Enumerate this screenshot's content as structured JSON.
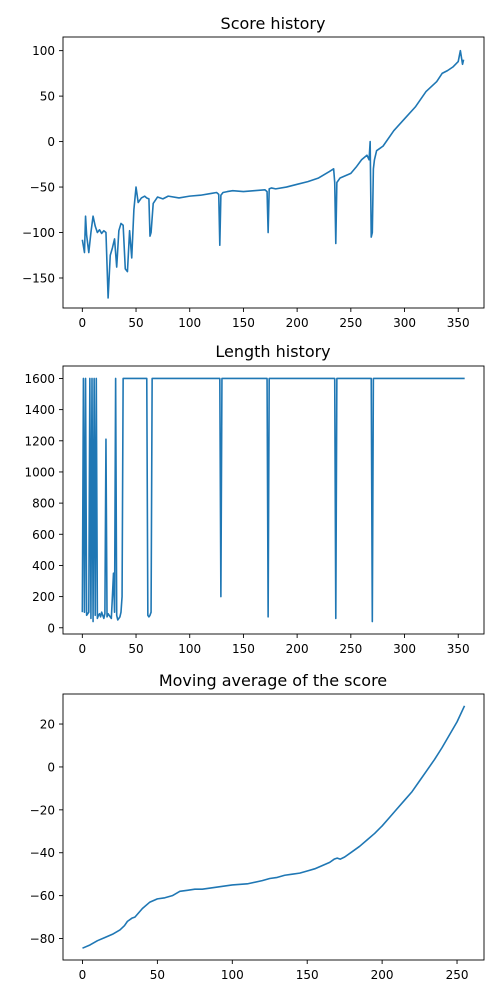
{
  "figure": {
    "line_color": "#1f77b4"
  },
  "chart_data": [
    {
      "type": "line",
      "title": "Score history",
      "xlabel": "",
      "ylabel": "",
      "xlim": [
        -18,
        374
      ],
      "ylim": [
        -183,
        115
      ],
      "xticks": [
        0,
        50,
        100,
        150,
        200,
        250,
        300,
        350
      ],
      "yticks": [
        -150,
        -100,
        -50,
        0,
        50,
        100
      ],
      "grid": false,
      "series": [
        {
          "x": [
            0,
            2,
            3,
            4,
            6,
            8,
            10,
            12,
            14,
            16,
            18,
            20,
            22,
            24,
            26,
            28,
            30,
            32,
            34,
            36,
            38,
            40,
            42,
            44,
            46,
            48,
            50,
            52,
            55,
            58,
            60,
            62,
            63,
            64,
            66,
            70,
            75,
            80,
            90,
            100,
            110,
            120,
            125,
            127,
            128,
            129,
            131,
            135,
            140,
            150,
            160,
            170,
            172,
            173,
            174,
            176,
            180,
            190,
            200,
            210,
            220,
            230,
            234,
            235,
            236,
            237,
            240,
            250,
            255,
            260,
            265,
            267,
            268,
            269,
            270,
            271,
            272,
            274,
            280,
            290,
            300,
            310,
            320,
            330,
            335,
            340,
            345,
            350,
            352,
            354,
            355
          ],
          "y": [
            -108,
            -122,
            -82,
            -103,
            -122,
            -100,
            -82,
            -93,
            -100,
            -97,
            -101,
            -98,
            -100,
            -172,
            -125,
            -117,
            -107,
            -138,
            -98,
            -90,
            -92,
            -140,
            -143,
            -98,
            -128,
            -75,
            -50,
            -67,
            -62,
            -60,
            -62,
            -63,
            -104,
            -100,
            -68,
            -61,
            -63,
            -60,
            -62,
            -60,
            -59,
            -57,
            -56,
            -58,
            -114,
            -59,
            -56,
            -55,
            -54,
            -55,
            -54,
            -53,
            -55,
            -100,
            -52,
            -51,
            -52,
            -50,
            -47,
            -44,
            -40,
            -33,
            -30,
            -45,
            -112,
            -45,
            -40,
            -35,
            -28,
            -20,
            -15,
            -20,
            0,
            -105,
            -100,
            -30,
            -20,
            -10,
            -5,
            12,
            25,
            38,
            55,
            66,
            75,
            78,
            82,
            88,
            100,
            85,
            90
          ]
        }
      ]
    },
    {
      "type": "line",
      "title": "Length history",
      "xlabel": "",
      "ylabel": "",
      "xlim": [
        -18,
        374
      ],
      "ylim": [
        -40,
        1680
      ],
      "xticks": [
        0,
        50,
        100,
        150,
        200,
        250,
        300,
        350
      ],
      "yticks": [
        0,
        200,
        400,
        600,
        800,
        1000,
        1200,
        1400,
        1600
      ],
      "grid": false,
      "series": [
        {
          "x": [
            0,
            1,
            2,
            3,
            4,
            5,
            6,
            7,
            8,
            9,
            10,
            11,
            12,
            13,
            14,
            15,
            16,
            17,
            18,
            19,
            20,
            21,
            22,
            23,
            24,
            25,
            26,
            27,
            28,
            29,
            30,
            31,
            32,
            33,
            34,
            35,
            36,
            37,
            38,
            39,
            40,
            41,
            42,
            43,
            44,
            45,
            46,
            50,
            55,
            58,
            59,
            60,
            61,
            62,
            63,
            64,
            65,
            66,
            67,
            70,
            80,
            100,
            120,
            127,
            128,
            129,
            130,
            131,
            140,
            160,
            170,
            171,
            172,
            173,
            174,
            180,
            200,
            220,
            230,
            234,
            235,
            236,
            237,
            238,
            240,
            260,
            268,
            269,
            270,
            271,
            272,
            273,
            280,
            300,
            320,
            340,
            356
          ],
          "y": [
            100,
            1600,
            100,
            1600,
            80,
            90,
            100,
            1600,
            60,
            1600,
            40,
            1600,
            80,
            1600,
            60,
            80,
            90,
            70,
            100,
            80,
            60,
            90,
            1210,
            70,
            90,
            80,
            70,
            60,
            200,
            350,
            100,
            1600,
            80,
            50,
            60,
            70,
            100,
            200,
            1600,
            1600,
            1600,
            1600,
            1600,
            1600,
            1600,
            1600,
            1600,
            1600,
            1600,
            1600,
            1600,
            1600,
            80,
            70,
            80,
            100,
            1600,
            1600,
            1600,
            1600,
            1600,
            1600,
            1600,
            1600,
            1600,
            200,
            1600,
            1600,
            1600,
            1600,
            1600,
            1600,
            1600,
            70,
            1600,
            1600,
            1600,
            1600,
            1600,
            1600,
            1600,
            60,
            1600,
            1600,
            1600,
            1600,
            1600,
            1600,
            40,
            1600,
            1600,
            1600,
            1600,
            1600,
            1600,
            1600,
            1600
          ]
        }
      ]
    },
    {
      "type": "line",
      "title": "Moving average of the score",
      "xlabel": "",
      "ylabel": "",
      "xlim": [
        -13,
        268
      ],
      "ylim": [
        -90,
        34
      ],
      "xticks": [
        0,
        50,
        100,
        150,
        200,
        250
      ],
      "yticks": [
        -80,
        -60,
        -40,
        -20,
        0,
        20
      ],
      "grid": false,
      "series": [
        {
          "x": [
            0,
            5,
            10,
            15,
            20,
            25,
            28,
            30,
            33,
            35,
            40,
            45,
            50,
            55,
            60,
            65,
            70,
            75,
            80,
            90,
            100,
            110,
            120,
            125,
            130,
            135,
            140,
            145,
            150,
            155,
            160,
            165,
            168,
            170,
            172,
            175,
            180,
            185,
            190,
            195,
            200,
            205,
            210,
            215,
            220,
            225,
            230,
            235,
            240,
            245,
            250,
            255
          ],
          "y": [
            -84.5,
            -83,
            -81,
            -79.5,
            -78,
            -76,
            -74,
            -72,
            -70.5,
            -70,
            -66,
            -63,
            -61.5,
            -61,
            -60,
            -58,
            -57.5,
            -57,
            -57,
            -56,
            -55,
            -54.5,
            -53,
            -52,
            -51.5,
            -50.5,
            -50,
            -49.5,
            -48.5,
            -47.5,
            -46,
            -44.5,
            -43,
            -42.5,
            -43,
            -42,
            -39.5,
            -37,
            -34,
            -31,
            -27.5,
            -23.5,
            -19.5,
            -15.5,
            -11.5,
            -6.5,
            -1.5,
            3.5,
            9,
            15,
            21,
            28.5
          ]
        }
      ]
    }
  ]
}
